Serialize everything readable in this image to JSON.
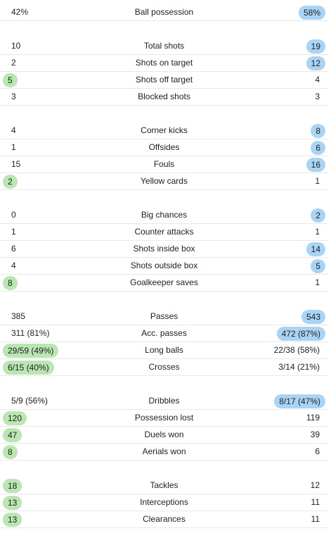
{
  "colors": {
    "home_highlight": "#b9e6b1",
    "away_highlight": "#a9d4f5",
    "divider": "#e8e8e8"
  },
  "groups": [
    {
      "rows": [
        {
          "label": "Ball possession",
          "home": "42%",
          "away": "58%",
          "lead": "away"
        }
      ]
    },
    {
      "rows": [
        {
          "label": "Total shots",
          "home": "10",
          "away": "19",
          "lead": "away"
        },
        {
          "label": "Shots on target",
          "home": "2",
          "away": "12",
          "lead": "away"
        },
        {
          "label": "Shots off target",
          "home": "5",
          "away": "4",
          "lead": "home"
        },
        {
          "label": "Blocked shots",
          "home": "3",
          "away": "3",
          "lead": "none"
        }
      ]
    },
    {
      "rows": [
        {
          "label": "Corner kicks",
          "home": "4",
          "away": "8",
          "lead": "away"
        },
        {
          "label": "Offsides",
          "home": "1",
          "away": "6",
          "lead": "away"
        },
        {
          "label": "Fouls",
          "home": "15",
          "away": "16",
          "lead": "away"
        },
        {
          "label": "Yellow cards",
          "home": "2",
          "away": "1",
          "lead": "home"
        }
      ]
    },
    {
      "rows": [
        {
          "label": "Big chances",
          "home": "0",
          "away": "2",
          "lead": "away"
        },
        {
          "label": "Counter attacks",
          "home": "1",
          "away": "1",
          "lead": "none"
        },
        {
          "label": "Shots inside box",
          "home": "6",
          "away": "14",
          "lead": "away"
        },
        {
          "label": "Shots outside box",
          "home": "4",
          "away": "5",
          "lead": "away"
        },
        {
          "label": "Goalkeeper saves",
          "home": "8",
          "away": "1",
          "lead": "home"
        }
      ]
    },
    {
      "rows": [
        {
          "label": "Passes",
          "home": "385",
          "away": "543",
          "lead": "away"
        },
        {
          "label": "Acc. passes",
          "home": "311 (81%)",
          "away": "472 (87%)",
          "lead": "away"
        },
        {
          "label": "Long balls",
          "home": "29/59 (49%)",
          "away": "22/38 (58%)",
          "lead": "home"
        },
        {
          "label": "Crosses",
          "home": "6/15 (40%)",
          "away": "3/14 (21%)",
          "lead": "home"
        }
      ]
    },
    {
      "rows": [
        {
          "label": "Dribbles",
          "home": "5/9 (56%)",
          "away": "8/17 (47%)",
          "lead": "away"
        },
        {
          "label": "Possession lost",
          "home": "120",
          "away": "119",
          "lead": "home"
        },
        {
          "label": "Duels won",
          "home": "47",
          "away": "39",
          "lead": "home"
        },
        {
          "label": "Aerials won",
          "home": "8",
          "away": "6",
          "lead": "home"
        }
      ]
    },
    {
      "rows": [
        {
          "label": "Tackles",
          "home": "18",
          "away": "12",
          "lead": "home"
        },
        {
          "label": "Interceptions",
          "home": "13",
          "away": "11",
          "lead": "home"
        },
        {
          "label": "Clearances",
          "home": "13",
          "away": "11",
          "lead": "home"
        }
      ]
    }
  ]
}
